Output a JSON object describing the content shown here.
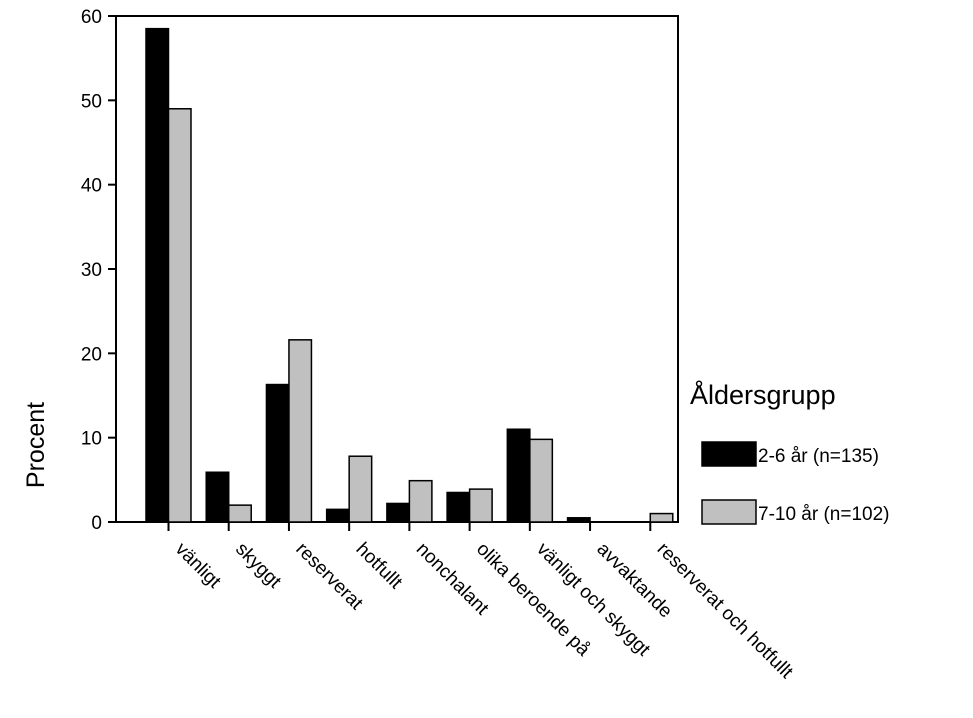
{
  "chart_data": {
    "type": "bar",
    "title": "",
    "xlabel": "",
    "ylabel": "Procent",
    "ylim": [
      0,
      60
    ],
    "yticks": [
      0,
      10,
      20,
      30,
      40,
      50,
      60
    ],
    "grid": false,
    "legend": {
      "title": "Åldersgrupp",
      "placement": "right"
    },
    "categories": [
      "vänligt",
      "skyggt",
      "reserverat",
      "hotfullt",
      "nonchalant",
      "olika beroende på",
      "vänligt och skyggt",
      "avvaktande",
      "reserverat och hotfullt"
    ],
    "series": [
      {
        "name": "2-6 år (n=135)",
        "color": "#000000",
        "values": [
          58.5,
          5.9,
          16.3,
          1.5,
          2.2,
          3.5,
          11.0,
          0.5,
          0
        ]
      },
      {
        "name": "7-10 år (n=102)",
        "color": "#c0c0c0",
        "values": [
          49.0,
          2.0,
          21.6,
          7.8,
          4.9,
          3.9,
          9.8,
          0,
          1.0
        ]
      }
    ]
  }
}
